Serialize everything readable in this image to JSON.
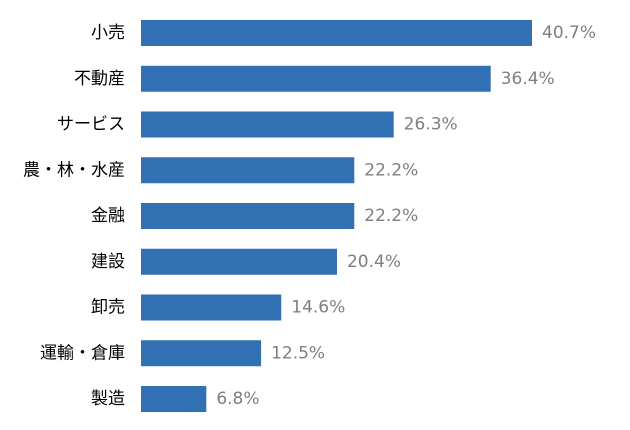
{
  "chart_data": {
    "type": "bar",
    "orientation": "horizontal",
    "categories": [
      "小売",
      "不動産",
      "サービス",
      "農・林・水産",
      "金融",
      "建設",
      "卸売",
      "運輸・倉庫",
      "製造"
    ],
    "values": [
      40.7,
      36.4,
      26.3,
      22.2,
      22.2,
      20.4,
      14.6,
      12.5,
      6.8
    ],
    "value_labels": [
      "40.7%",
      "36.4%",
      "26.3%",
      "22.2%",
      "22.2%",
      "20.4%",
      "14.6%",
      "12.5%",
      "6.8%"
    ],
    "color": "#3070b3"
  }
}
